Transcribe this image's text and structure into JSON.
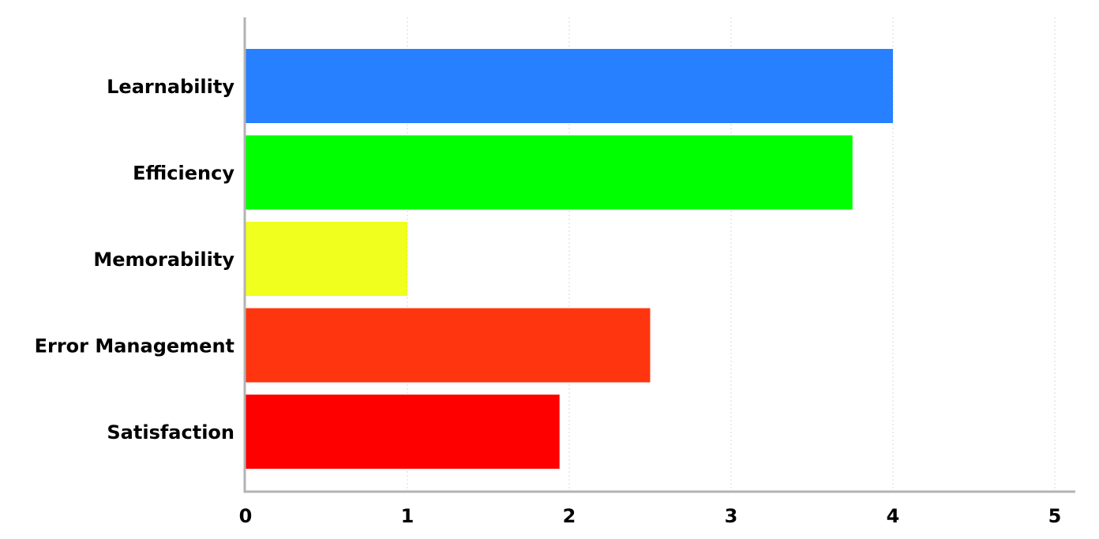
{
  "chart_data": {
    "type": "bar",
    "orientation": "horizontal",
    "categories": [
      "Learnability",
      "Efficiency",
      "Memorability",
      "Error Management",
      "Satisfaction"
    ],
    "values": [
      4.0,
      3.75,
      1.0,
      2.5,
      1.94
    ],
    "colors": [
      "#2680ff",
      "#00ff00",
      "#f0ff1e",
      "#ff3510",
      "#ff0000"
    ],
    "xlim": [
      0,
      5
    ],
    "xticks": [
      "0",
      "1",
      "2",
      "3",
      "4",
      "5"
    ],
    "grid": "vertical dotted",
    "title": "",
    "xlabel": "",
    "ylabel": ""
  }
}
